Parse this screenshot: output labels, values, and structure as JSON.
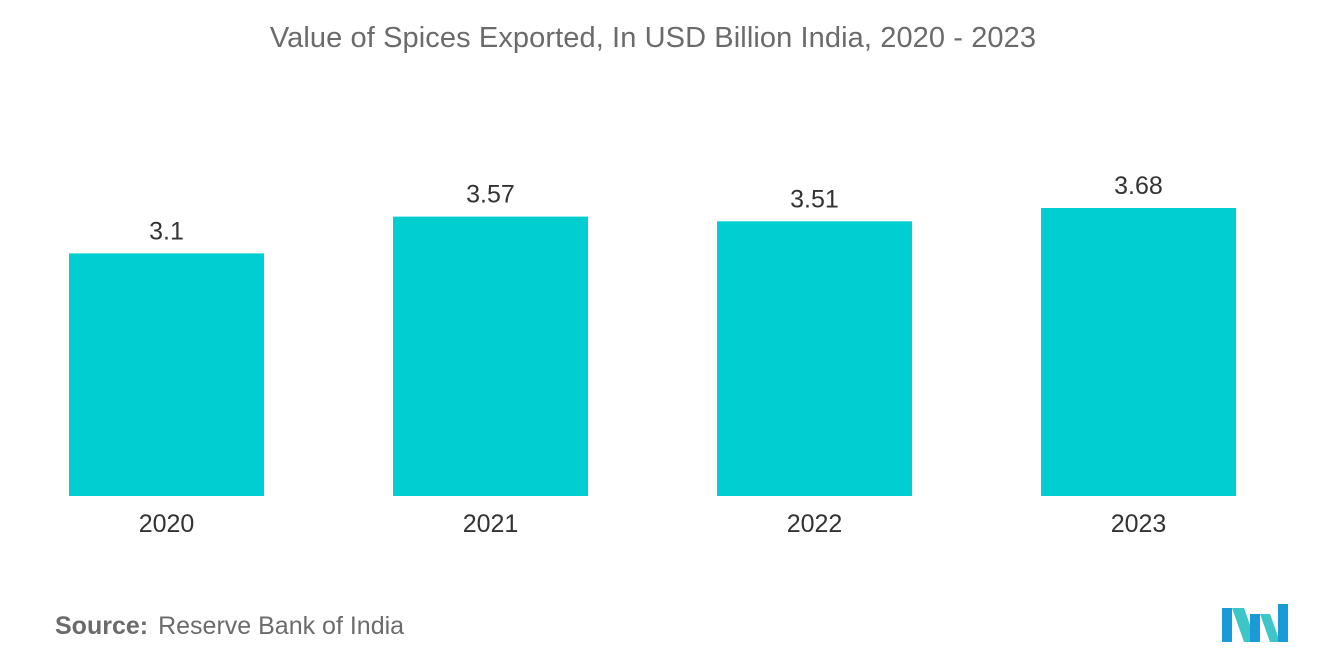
{
  "chart_data": {
    "type": "bar",
    "title": "Value of Spices Exported, In USD Billion India, 2020 - 2023",
    "categories": [
      "2020",
      "2021",
      "2022",
      "2023"
    ],
    "values": [
      3.1,
      3.57,
      3.51,
      3.68
    ],
    "value_labels": [
      "3.1",
      "3.57",
      "3.51",
      "3.68"
    ],
    "xlabel": "",
    "ylabel": "",
    "ylim": [
      0,
      3.68
    ],
    "grid": false,
    "legend": "none",
    "bar_color": "#00ced1"
  },
  "source": {
    "label": "Source:",
    "text": "Reserve Bank of India"
  },
  "logo": {
    "icon": "mordor-intelligence-logo-icon",
    "colors": [
      "#1a9bd7",
      "#3cc6c8"
    ]
  }
}
